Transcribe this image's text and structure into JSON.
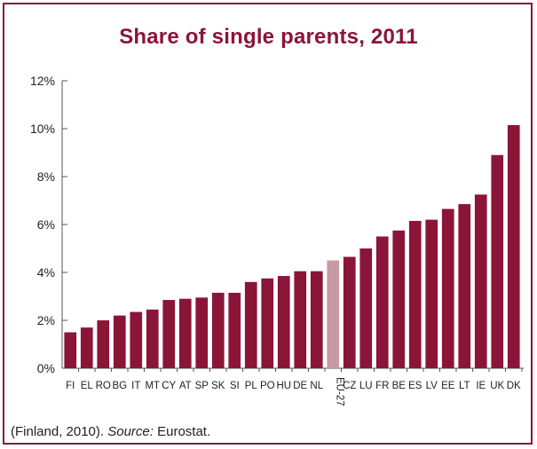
{
  "chart_data": {
    "type": "bar",
    "title": "Share of single parents, 2011",
    "xlabel": "",
    "ylabel": "",
    "ylim": [
      0,
      12
    ],
    "yticks": [
      0,
      2,
      4,
      6,
      8,
      10,
      12
    ],
    "ytick_labels": [
      "0%",
      "2%",
      "4%",
      "6%",
      "8%",
      "10%",
      "12%"
    ],
    "categories": [
      "FI",
      "EL",
      "RO",
      "BG",
      "IT",
      "MT",
      "CY",
      "AT",
      "SP",
      "SK",
      "SI",
      "PL",
      "PO",
      "HU",
      "DE",
      "NL",
      "EU-27",
      "CZ",
      "LU",
      "FR",
      "BE",
      "ES",
      "LV",
      "EE",
      "LT",
      "IE",
      "UK",
      "DK"
    ],
    "values": [
      1.5,
      1.7,
      2.0,
      2.2,
      2.35,
      2.45,
      2.85,
      2.9,
      2.95,
      3.15,
      3.15,
      3.6,
      3.75,
      3.85,
      4.05,
      4.05,
      4.5,
      4.65,
      5.0,
      5.5,
      5.75,
      6.15,
      6.2,
      6.65,
      6.85,
      7.25,
      8.9,
      10.15
    ],
    "highlight_category": "EU-27",
    "colors": {
      "bar": "#8a1538",
      "highlight": "#c79aa3",
      "frame": "#8a1538",
      "title": "#8a1538"
    },
    "grid": false,
    "legend": "none"
  },
  "footnote": {
    "prefix": "(Finland, 2010). ",
    "source_label": "Source:",
    "source_value": " Eurostat."
  }
}
